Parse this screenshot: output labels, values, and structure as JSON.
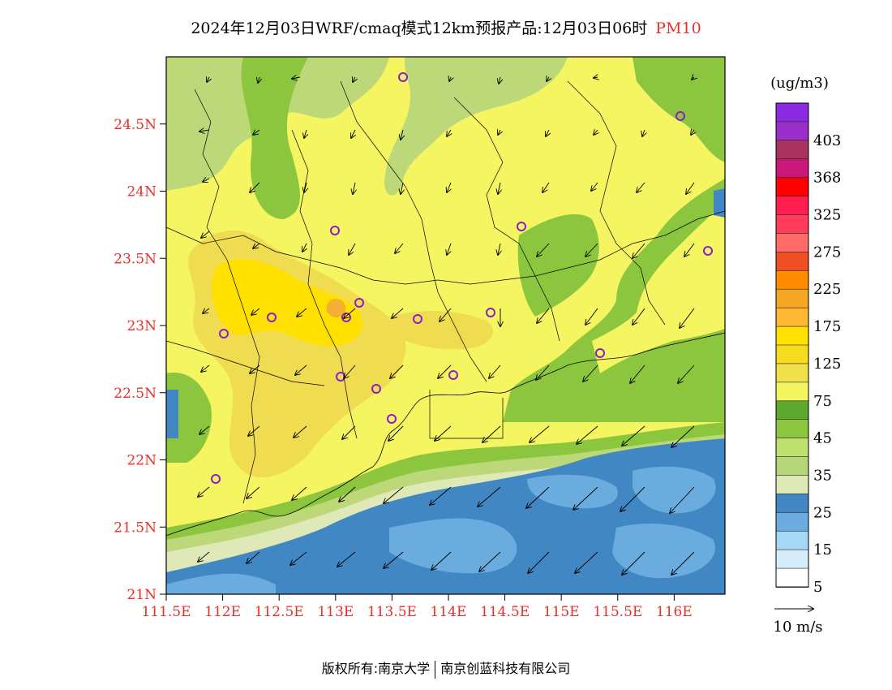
{
  "title": {
    "main": "2024年12月03日WRF/cmaq模式12km预报产品:12月03日06时",
    "variable": "PM10"
  },
  "map": {
    "lat_ticks": [
      "24.5N",
      "24N",
      "23.5N",
      "23N",
      "22.5N",
      "22N",
      "21.5N",
      "21N"
    ],
    "lon_ticks": [
      "111.5E",
      "112E",
      "112.5E",
      "113E",
      "113.5E",
      "114E",
      "114.5E",
      "115E",
      "115.5E",
      "116E"
    ],
    "extent": {
      "lon_min": 111.5,
      "lon_max": 116.45,
      "lat_min": 21.0,
      "lat_max": 25.0
    }
  },
  "colorbar": {
    "unit": "(ug/m3)",
    "labels": [
      "403",
      "368",
      "325",
      "275",
      "225",
      "175",
      "125",
      "75",
      "45",
      "35",
      "25",
      "15",
      "5"
    ],
    "colors_top_to_bottom": [
      "#8a2be2",
      "#9b2fc9",
      "#a8345e",
      "#c8187a",
      "#ff0000",
      "#ff1e4f",
      "#ff3c5a",
      "#ff6a6a",
      "#f04e23",
      "#ff8c00",
      "#f5a623",
      "#ffb833",
      "#ffe000",
      "#f5dc1e",
      "#f0e04a",
      "#f5f562",
      "#5fa830",
      "#8cc63f",
      "#c0e070",
      "#b4d678",
      "#dfe9b8",
      "#4187c4",
      "#6aacde",
      "#a6d8f5",
      "#d6eefb",
      "#ffffff"
    ]
  },
  "wind_legend": {
    "label": "10 m/s"
  },
  "copyright": {
    "left": "版权所有:南京大学",
    "right": "南京创蓝科技有限公司"
  },
  "colors": {
    "yellow_light": "#f5f562",
    "yellow_mid": "#f0dc50",
    "yellow_orange": "#f5b033",
    "green_dark": "#6aa838",
    "green_mid": "#8cc63f",
    "green_light": "#bcd878",
    "green_pale": "#dfe9b8",
    "blue_dark": "#4187c4",
    "blue_mid": "#6aacde"
  }
}
